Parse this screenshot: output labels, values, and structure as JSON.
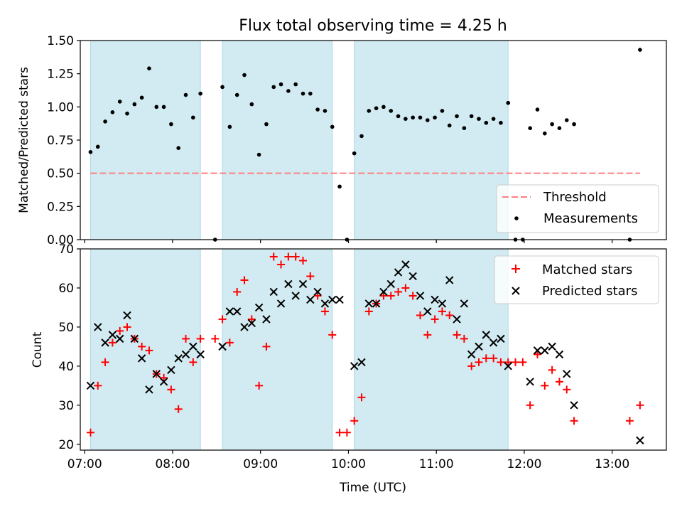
{
  "title": "Flux total observing time = 4.25 h",
  "colors": {
    "span": "#add8e6",
    "threshold": "#ff7f7f",
    "matched": "#ff0000",
    "predicted": "#000000",
    "measure": "#000000"
  },
  "chart_data": [
    {
      "type": "scatter",
      "ylabel": "Matched/Predicted stars",
      "ylim": [
        0,
        1.5
      ],
      "yticks": [
        "0.00",
        "0.25",
        "0.50",
        "0.75",
        "1.00",
        "1.25",
        "1.50"
      ],
      "xlim": [
        "06:57",
        "13:37"
      ],
      "xticks": [
        "07:00",
        "08:00",
        "09:00",
        "10:00",
        "11:00",
        "12:00",
        "13:00"
      ],
      "observing_spans": [
        [
          "07:04",
          "08:19"
        ],
        [
          "08:34",
          "09:49"
        ],
        [
          "10:04",
          "11:49"
        ]
      ],
      "threshold": {
        "value": 0.5,
        "x": [
          "07:04",
          "13:19"
        ]
      },
      "legend": {
        "position": "lower-right",
        "entries": [
          "Threshold",
          "Measurements"
        ]
      },
      "series": [
        {
          "name": "Measurements",
          "points": [
            [
              "07:04",
              0.66
            ],
            [
              "07:09",
              0.7
            ],
            [
              "07:14",
              0.89
            ],
            [
              "07:19",
              0.96
            ],
            [
              "07:24",
              1.04
            ],
            [
              "07:29",
              0.95
            ],
            [
              "07:34",
              1.02
            ],
            [
              "07:39",
              1.07
            ],
            [
              "07:44",
              1.29
            ],
            [
              "07:49",
              1.0
            ],
            [
              "07:54",
              1.0
            ],
            [
              "07:59",
              0.87
            ],
            [
              "08:04",
              0.69
            ],
            [
              "08:09",
              1.09
            ],
            [
              "08:14",
              0.92
            ],
            [
              "08:19",
              1.1
            ],
            [
              "08:29",
              0.0
            ],
            [
              "08:34",
              1.15
            ],
            [
              "08:39",
              0.85
            ],
            [
              "08:44",
              1.09
            ],
            [
              "08:49",
              1.24
            ],
            [
              "08:54",
              1.02
            ],
            [
              "08:59",
              0.64
            ],
            [
              "09:04",
              0.87
            ],
            [
              "09:09",
              1.15
            ],
            [
              "09:14",
              1.17
            ],
            [
              "09:19",
              1.12
            ],
            [
              "09:24",
              1.17
            ],
            [
              "09:29",
              1.1
            ],
            [
              "09:34",
              1.1
            ],
            [
              "09:39",
              0.98
            ],
            [
              "09:44",
              0.97
            ],
            [
              "09:49",
              0.85
            ],
            [
              "09:54",
              0.4
            ],
            [
              "09:59",
              0.0
            ],
            [
              "10:04",
              0.65
            ],
            [
              "10:09",
              0.78
            ],
            [
              "10:14",
              0.97
            ],
            [
              "10:19",
              0.99
            ],
            [
              "10:24",
              1.0
            ],
            [
              "10:29",
              0.97
            ],
            [
              "10:34",
              0.93
            ],
            [
              "10:39",
              0.91
            ],
            [
              "10:44",
              0.92
            ],
            [
              "10:49",
              0.92
            ],
            [
              "10:54",
              0.9
            ],
            [
              "10:59",
              0.92
            ],
            [
              "11:04",
              0.97
            ],
            [
              "11:09",
              0.86
            ],
            [
              "11:14",
              0.93
            ],
            [
              "11:19",
              0.84
            ],
            [
              "11:24",
              0.93
            ],
            [
              "11:29",
              0.91
            ],
            [
              "11:34",
              0.88
            ],
            [
              "11:39",
              0.91
            ],
            [
              "11:44",
              0.88
            ],
            [
              "11:49",
              1.03
            ],
            [
              "11:54",
              0.0
            ],
            [
              "11:59",
              0.0
            ],
            [
              "12:04",
              0.84
            ],
            [
              "12:09",
              0.98
            ],
            [
              "12:14",
              0.8
            ],
            [
              "12:19",
              0.87
            ],
            [
              "12:24",
              0.84
            ],
            [
              "12:29",
              0.9
            ],
            [
              "12:34",
              0.87
            ],
            [
              "13:12",
              0.0
            ],
            [
              "13:19",
              1.43
            ]
          ]
        }
      ]
    },
    {
      "type": "scatter",
      "ylabel": "Count",
      "xlabel": "Time (UTC)",
      "ylim": [
        18.5,
        70
      ],
      "yticks": [
        "20",
        "30",
        "40",
        "50",
        "60",
        "70"
      ],
      "xlim": [
        "06:57",
        "13:37"
      ],
      "xticks": [
        "07:00",
        "08:00",
        "09:00",
        "10:00",
        "11:00",
        "12:00",
        "13:00"
      ],
      "observing_spans": [
        [
          "07:04",
          "08:19"
        ],
        [
          "08:34",
          "09:49"
        ],
        [
          "10:04",
          "11:49"
        ]
      ],
      "legend": {
        "position": "upper-right",
        "entries": [
          "Matched stars",
          "Predicted stars"
        ]
      },
      "series": [
        {
          "name": "Matched stars",
          "marker": "plus",
          "points": [
            [
              "07:04",
              23
            ],
            [
              "07:09",
              35
            ],
            [
              "07:14",
              41
            ],
            [
              "07:19",
              46
            ],
            [
              "07:24",
              49
            ],
            [
              "07:29",
              50
            ],
            [
              "07:34",
              47
            ],
            [
              "07:39",
              45
            ],
            [
              "07:44",
              44
            ],
            [
              "07:49",
              38
            ],
            [
              "07:54",
              37
            ],
            [
              "07:59",
              34
            ],
            [
              "08:04",
              29
            ],
            [
              "08:09",
              47
            ],
            [
              "08:14",
              41
            ],
            [
              "08:19",
              47
            ],
            [
              "08:29",
              47
            ],
            [
              "08:34",
              52
            ],
            [
              "08:39",
              46
            ],
            [
              "08:44",
              59
            ],
            [
              "08:49",
              62
            ],
            [
              "08:54",
              52
            ],
            [
              "08:59",
              35
            ],
            [
              "09:04",
              45
            ],
            [
              "09:09",
              68
            ],
            [
              "09:14",
              66
            ],
            [
              "09:19",
              68
            ],
            [
              "09:24",
              68
            ],
            [
              "09:29",
              67
            ],
            [
              "09:34",
              63
            ],
            [
              "09:39",
              58
            ],
            [
              "09:44",
              54
            ],
            [
              "09:49",
              48
            ],
            [
              "09:54",
              23
            ],
            [
              "09:59",
              23
            ],
            [
              "10:04",
              26
            ],
            [
              "10:09",
              32
            ],
            [
              "10:14",
              54
            ],
            [
              "10:19",
              56
            ],
            [
              "10:24",
              58
            ],
            [
              "10:29",
              58
            ],
            [
              "10:34",
              59
            ],
            [
              "10:39",
              60
            ],
            [
              "10:44",
              58
            ],
            [
              "10:49",
              53
            ],
            [
              "10:54",
              48
            ],
            [
              "10:59",
              52
            ],
            [
              "11:04",
              54
            ],
            [
              "11:09",
              53
            ],
            [
              "11:14",
              48
            ],
            [
              "11:19",
              47
            ],
            [
              "11:24",
              40
            ],
            [
              "11:29",
              41
            ],
            [
              "11:34",
              42
            ],
            [
              "11:39",
              42
            ],
            [
              "11:44",
              41
            ],
            [
              "11:49",
              41
            ],
            [
              "11:54",
              41
            ],
            [
              "11:59",
              41
            ],
            [
              "12:04",
              30
            ],
            [
              "12:09",
              43
            ],
            [
              "12:14",
              35
            ],
            [
              "12:19",
              39
            ],
            [
              "12:24",
              36
            ],
            [
              "12:29",
              34
            ],
            [
              "12:34",
              26
            ],
            [
              "13:12",
              26
            ],
            [
              "13:19",
              30
            ]
          ]
        },
        {
          "name": "Predicted stars",
          "marker": "x",
          "points": [
            [
              "07:04",
              35
            ],
            [
              "07:09",
              50
            ],
            [
              "07:14",
              46
            ],
            [
              "07:19",
              48
            ],
            [
              "07:24",
              47
            ],
            [
              "07:29",
              53
            ],
            [
              "07:34",
              47
            ],
            [
              "07:39",
              42
            ],
            [
              "07:44",
              34
            ],
            [
              "07:49",
              38
            ],
            [
              "07:54",
              36
            ],
            [
              "07:59",
              39
            ],
            [
              "08:04",
              42
            ],
            [
              "08:09",
              43
            ],
            [
              "08:14",
              45
            ],
            [
              "08:19",
              43
            ],
            [
              "08:34",
              45
            ],
            [
              "08:39",
              54
            ],
            [
              "08:44",
              54
            ],
            [
              "08:49",
              50
            ],
            [
              "08:54",
              51
            ],
            [
              "08:59",
              55
            ],
            [
              "09:04",
              52
            ],
            [
              "09:09",
              59
            ],
            [
              "09:14",
              56
            ],
            [
              "09:19",
              61
            ],
            [
              "09:24",
              58
            ],
            [
              "09:29",
              61
            ],
            [
              "09:34",
              57
            ],
            [
              "09:39",
              59
            ],
            [
              "09:44",
              56
            ],
            [
              "09:49",
              57
            ],
            [
              "09:54",
              57
            ],
            [
              "10:04",
              40
            ],
            [
              "10:09",
              41
            ],
            [
              "10:14",
              56
            ],
            [
              "10:19",
              56
            ],
            [
              "10:24",
              59
            ],
            [
              "10:29",
              61
            ],
            [
              "10:34",
              64
            ],
            [
              "10:39",
              66
            ],
            [
              "10:44",
              63
            ],
            [
              "10:49",
              58
            ],
            [
              "10:54",
              54
            ],
            [
              "10:59",
              57
            ],
            [
              "11:04",
              56
            ],
            [
              "11:09",
              62
            ],
            [
              "11:14",
              52
            ],
            [
              "11:19",
              56
            ],
            [
              "11:24",
              43
            ],
            [
              "11:29",
              45
            ],
            [
              "11:34",
              48
            ],
            [
              "11:39",
              46
            ],
            [
              "11:44",
              47
            ],
            [
              "11:49",
              40
            ],
            [
              "12:04",
              36
            ],
            [
              "12:09",
              44
            ],
            [
              "12:14",
              44
            ],
            [
              "12:19",
              45
            ],
            [
              "12:24",
              43
            ],
            [
              "12:29",
              38
            ],
            [
              "12:34",
              30
            ],
            [
              "13:19",
              21
            ]
          ]
        }
      ]
    }
  ]
}
